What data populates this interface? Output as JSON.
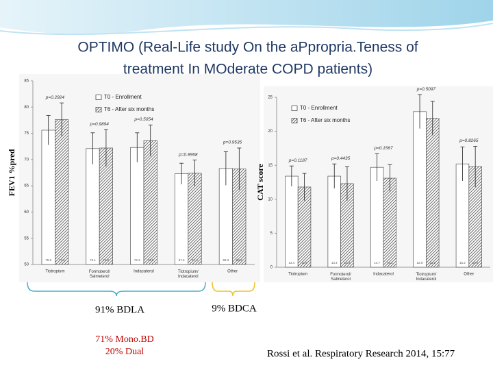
{
  "slide": {
    "title_line1": "OPTIMO (Real-Life study On the aPpropria.Teness of",
    "title_line2": "treatment In MOderate COPD patients)",
    "bracket_left": "91% BDLA",
    "bracket_right": "9% BDCA",
    "split_line1": "71% Mono.BD",
    "split_line2": "20% Dual",
    "citation": "Rossi et al. Respiratory Research 2014, 15:77"
  },
  "chart_data": [
    {
      "type": "bar",
      "ylabel": "FEV1 %pred",
      "categories": [
        "Tiotropium",
        "Formoterol/ Salmeterol",
        "Indacaterol",
        "Tiotropium/ Indacaterol",
        "Other"
      ],
      "series": [
        {
          "name": "T0 - Enrollment",
          "color": "#ffffff",
          "values": [
            75.6,
            72.1,
            72.3,
            67.3,
            68.3
          ],
          "errors": [
            2.8,
            3.0,
            2.8,
            2.0,
            3.2
          ]
        },
        {
          "name": "T6 - After six months",
          "color": "#444444",
          "pattern": "hatch",
          "values": [
            77.6,
            72.2,
            73.6,
            67.4,
            68.2
          ],
          "errors": [
            3.2,
            3.5,
            3.0,
            2.5,
            4.0
          ]
        }
      ],
      "annotations": [
        "p=0.2924",
        "p=0.9894",
        "p=0.5054",
        "p=0.8968",
        "p=0.9535"
      ],
      "ylim": [
        50,
        85
      ],
      "yticks": [
        50,
        55,
        60,
        65,
        70,
        75,
        80,
        85
      ]
    },
    {
      "type": "bar",
      "ylabel": "CAT score",
      "categories": [
        "Tiotropium",
        "Formoterol/ Salmeterol",
        "Indacaterol",
        "Tiotropium/ Indacaterol",
        "Other"
      ],
      "series": [
        {
          "name": "T0 - Enrollment",
          "color": "#ffffff",
          "values": [
            13.4,
            13.4,
            14.7,
            22.9,
            15.2
          ],
          "errors": [
            1.5,
            1.8,
            2.0,
            2.5,
            2.5
          ]
        },
        {
          "name": "T6 - After six months",
          "color": "#444444",
          "pattern": "hatch",
          "values": [
            11.8,
            12.3,
            13.1,
            21.9,
            14.8
          ],
          "errors": [
            2.0,
            2.5,
            2.0,
            2.5,
            3.0
          ]
        }
      ],
      "annotations": [
        "p=0.1187",
        "p=0.4435",
        "p=0.1567",
        "p=0.5097",
        "p=0.8265"
      ],
      "ylim": [
        0,
        25
      ],
      "yticks": [
        0,
        5,
        10,
        15,
        20,
        25
      ]
    }
  ]
}
